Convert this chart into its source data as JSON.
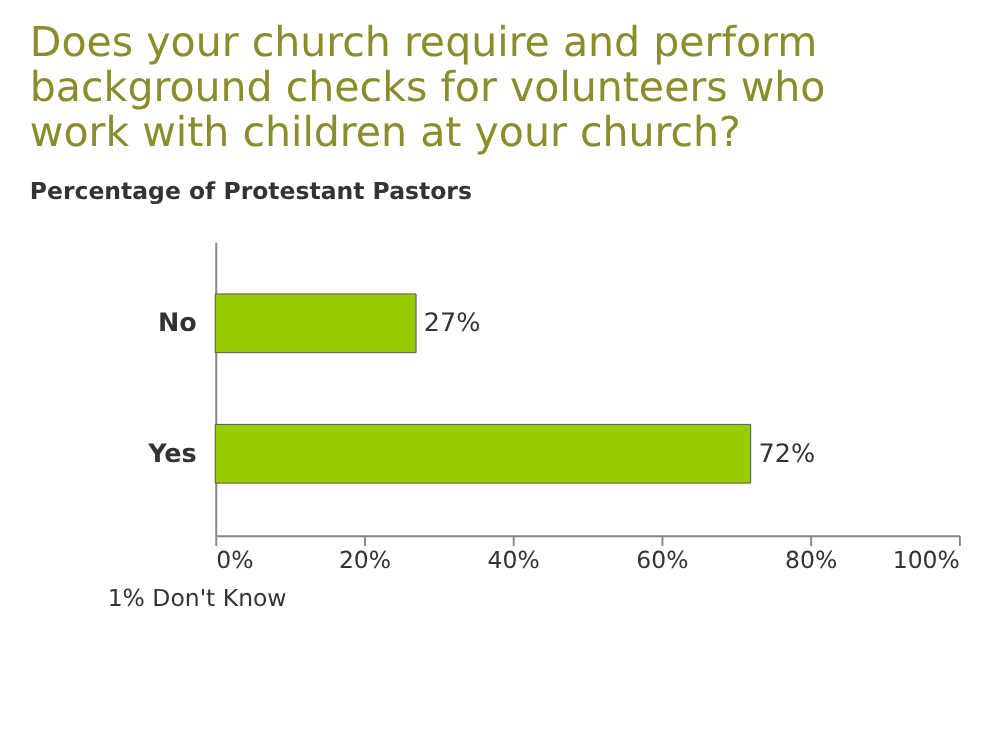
{
  "chart_data": {
    "type": "bar",
    "orientation": "horizontal",
    "title": "Does your church require and perform background checks for volunteers who work with children at your church?",
    "subtitle": "Percentage of Protestant Pastors",
    "categories": [
      "No",
      "Yes"
    ],
    "values": [
      27,
      72
    ],
    "color": "#99cc00",
    "value_labels": [
      "27%",
      "72%"
    ],
    "xlim": [
      0,
      100
    ],
    "xticks": [
      {
        "value": 0,
        "label": "0%"
      },
      {
        "value": 20,
        "label": "20%"
      },
      {
        "value": 40,
        "label": "40%"
      },
      {
        "value": 60,
        "label": "60%"
      },
      {
        "value": 80,
        "label": "80%"
      },
      {
        "value": 100,
        "label": "100%"
      }
    ],
    "grid": false,
    "annotations": [
      "1% Don't Know"
    ]
  }
}
